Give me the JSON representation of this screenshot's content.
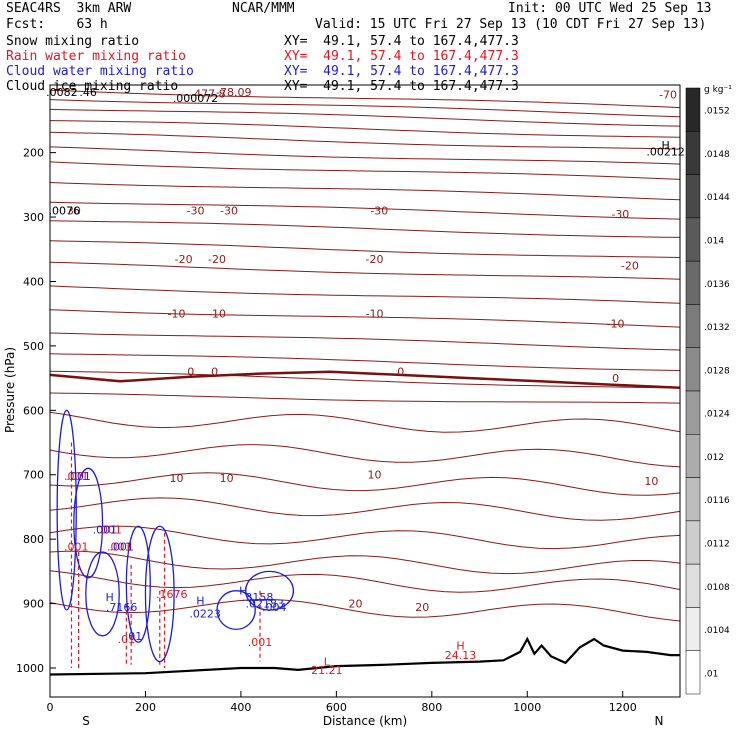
{
  "header": {
    "model": "SEAC4RS  3km ARW",
    "org": "NCAR/MMM",
    "init": "Init: 00 UTC Wed 25 Sep 13",
    "fcst": "Fcst:    63 h",
    "valid": "Valid: 15 UTC Fri 27 Sep 13 (10 CDT Fri 27 Sep 13)",
    "fields": [
      {
        "name": "Snow mixing ratio",
        "xy": "XY=  49.1, 57.4 to 167.4,477.3",
        "color": "#000000"
      },
      {
        "name": "Rain water mixing ratio",
        "xy": "XY=  49.1, 57.4 to 167.4,477.3",
        "color": "#e8141e"
      },
      {
        "name": "Cloud water mixing ratio",
        "xy": "XY=  49.1, 57.4 to 167.4,477.3",
        "color": "#1c1cd8"
      },
      {
        "name": "Cloud ice mixing ratio",
        "xy": "XY=  49.1, 57.4 to 167.4,477.3",
        "color": "#000000"
      }
    ]
  },
  "chart_data": {
    "type": "cross-section contour",
    "xlabel": "Distance (km)",
    "ylabel": "Pressure (hPa)",
    "xlim": [
      0,
      1320
    ],
    "ylim": [
      1045,
      95
    ],
    "x_ticks": [
      0,
      200,
      400,
      600,
      800,
      1000,
      1200
    ],
    "y_ticks": [
      200,
      300,
      400,
      500,
      600,
      700,
      800,
      900,
      1000
    ],
    "x_end_labels": {
      "left": "S",
      "right": "N"
    },
    "temperature_contours": {
      "color": "#8b1a1a",
      "levels_p_at_left": [
        103,
        116,
        131,
        150,
        170,
        193,
        215,
        245,
        275,
        305,
        338,
        372,
        408,
        443,
        478,
        511,
        540,
        575,
        612,
        660,
        705,
        745,
        790,
        830,
        860,
        900
      ],
      "labels": [
        {
          "text": "-30",
          "x": 305,
          "p": 290
        },
        {
          "text": "-30",
          "x": 375,
          "p": 290
        },
        {
          "text": "-30",
          "x": 690,
          "p": 290
        },
        {
          "text": "-30",
          "x": 1195,
          "p": 295
        },
        {
          "text": "30",
          "x": 50,
          "p": 290
        },
        {
          "text": "-20",
          "x": 280,
          "p": 365
        },
        {
          "text": "-20",
          "x": 350,
          "p": 365
        },
        {
          "text": "-20",
          "x": 680,
          "p": 365
        },
        {
          "text": "-20",
          "x": 1215,
          "p": 375
        },
        {
          "text": "-10",
          "x": 265,
          "p": 450
        },
        {
          "text": "-10",
          "x": 350,
          "p": 450
        },
        {
          "text": "-10",
          "x": 680,
          "p": 450
        },
        {
          "text": "-10",
          "x": 1185,
          "p": 465
        },
        {
          "text": "0",
          "x": 295,
          "p": 540
        },
        {
          "text": "0",
          "x": 345,
          "p": 540
        },
        {
          "text": "0",
          "x": 735,
          "p": 540
        },
        {
          "text": "0",
          "x": 1185,
          "p": 550
        },
        {
          "text": "10",
          "x": 265,
          "p": 705
        },
        {
          "text": "10",
          "x": 370,
          "p": 705
        },
        {
          "text": "10",
          "x": 680,
          "p": 700
        },
        {
          "text": "10",
          "x": 1260,
          "p": 710
        },
        {
          "text": "20",
          "x": 640,
          "p": 900
        },
        {
          "text": "20",
          "x": 780,
          "p": 905
        },
        {
          "text": "-70",
          "x": 1295,
          "p": 110
        },
        {
          "text": "-78.09",
          "x": 385,
          "p": 106
        },
        {
          "text": "477.8",
          "x": 335,
          "p": 108
        }
      ]
    },
    "zero_isotherm": {
      "levels_p": [
        545,
        555,
        548,
        543,
        540,
        545,
        550,
        555,
        560,
        565
      ]
    },
    "terrain": {
      "x": [
        0,
        200,
        400,
        470,
        520,
        600,
        700,
        800,
        900,
        950,
        985,
        1000,
        1015,
        1030,
        1050,
        1080,
        1110,
        1140,
        1160,
        1200,
        1250,
        1300,
        1320
      ],
      "p": [
        1010,
        1008,
        1000,
        1000,
        1003,
        997,
        995,
        992,
        990,
        988,
        975,
        955,
        978,
        965,
        982,
        992,
        968,
        955,
        965,
        973,
        975,
        980,
        980
      ]
    },
    "rain_annotations": [
      {
        "text": ".001",
        "x": 55,
        "p": 702
      },
      {
        "text": ".001",
        "x": 55,
        "p": 811
      },
      {
        "text": ".001",
        "x": 125,
        "p": 785
      },
      {
        "text": ".001",
        "x": 145,
        "p": 811
      },
      {
        "text": ".01",
        "x": 160,
        "p": 955
      },
      {
        "text": ".1676",
        "x": 255,
        "p": 885
      },
      {
        "text": ".001",
        "x": 440,
        "p": 960
      }
    ],
    "cloud_annotations": [
      {
        "text": ".001",
        "x": 60,
        "p": 702
      },
      {
        "text": ".001",
        "x": 115,
        "p": 785
      },
      {
        "text": ".001",
        "x": 150,
        "p": 811
      },
      {
        "text": "H",
        "x": 125,
        "p": 890
      },
      {
        "text": ".7166",
        "x": 150,
        "p": 905
      },
      {
        "text": ".01",
        "x": 175,
        "p": 950
      },
      {
        "text": "H",
        "x": 315,
        "p": 895
      },
      {
        "text": ".0223",
        "x": 325,
        "p": 915
      },
      {
        "text": "H",
        "x": 405,
        "p": 880
      },
      {
        "text": ".3158",
        "x": 435,
        "p": 890
      },
      {
        "text": ".02183",
        "x": 450,
        "p": 900
      },
      {
        "text": ".004",
        "x": 470,
        "p": 905
      }
    ],
    "black_annotations": [
      {
        "text": ".0082",
        "x": 25,
        "p": 106
      },
      {
        "text": ".46",
        "x": 80,
        "p": 106
      },
      {
        "text": ".000072",
        "x": 305,
        "p": 115
      },
      {
        "text": "H",
        "x": 1290,
        "p": 188
      },
      {
        "text": ".00212",
        "x": 1290,
        "p": 198
      },
      {
        "text": ".0076",
        "x": 30,
        "p": 290
      }
    ],
    "hl_markers": [
      {
        "text": "H",
        "x": 860,
        "p": 965,
        "color": "#e8141e"
      },
      {
        "text": "24.13",
        "x": 860,
        "p": 980,
        "color": "#e8141e"
      },
      {
        "text": "L",
        "x": 580,
        "p": 990,
        "color": "#e8141e"
      },
      {
        "text": "21.21",
        "x": 580,
        "p": 1003,
        "color": "#e8141e"
      }
    ]
  },
  "colorbar": {
    "unit": "g kg⁻¹",
    "labels": [
      ".0152",
      ".0148",
      ".0144",
      ".014",
      ".0136",
      ".0132",
      ".0128",
      ".0124",
      ".012",
      ".0116",
      ".0112",
      ".0108",
      ".0104",
      ".01"
    ]
  }
}
